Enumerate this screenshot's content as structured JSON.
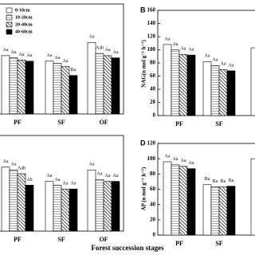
{
  "chart_data": [
    {
      "type": "bar",
      "ylim": [
        0,
        100
      ],
      "categories": [
        "PF",
        "SF",
        "OF"
      ],
      "legend": true,
      "series": [
        {
          "name": "0-10cm",
          "color": "#ffffff",
          "pattern": "none",
          "values": [
            53,
            48,
            65
          ],
          "labels": [
            "Aa",
            "Aa",
            "Aa"
          ]
        },
        {
          "name": "10-20cm",
          "color": "#ffffff",
          "pattern": "horizontal",
          "values": [
            51,
            46,
            55
          ],
          "labels": [
            "Aa",
            "Aa",
            "Aab"
          ]
        },
        {
          "name": "20-40cm",
          "color": "#ffffff",
          "pattern": "diagonal",
          "values": [
            49,
            43,
            53
          ],
          "labels": [
            "Aa",
            "Aa",
            "Aa"
          ]
        },
        {
          "name": "40-60cm",
          "color": "#000000",
          "pattern": "none",
          "values": [
            48,
            35,
            51
          ],
          "labels": [
            "Aa",
            "Ba",
            "Aa"
          ]
        }
      ]
    },
    {
      "type": "bar",
      "panel": "B",
      "y_label": "NAG(n mol g⁻¹ h⁻¹)",
      "ylim": [
        0,
        160
      ],
      "yticks": [
        0,
        20,
        40,
        60,
        80,
        100,
        120,
        140,
        160
      ],
      "categories": [
        "PF",
        "SF",
        null
      ],
      "series": [
        {
          "color": "#ffffff",
          "pattern": "none",
          "values": [
            108,
            82,
            103
          ],
          "labels": [
            "Aa",
            "Aa",
            null
          ]
        },
        {
          "color": "#ffffff",
          "pattern": "horizontal",
          "values": [
            100,
            76,
            null
          ],
          "labels": [
            "Aa",
            "Aa",
            null
          ]
        },
        {
          "color": "#ffffff",
          "pattern": "diagonal",
          "values": [
            93,
            70,
            null
          ],
          "labels": [
            "Aa",
            "Aa",
            null
          ]
        },
        {
          "color": "#000000",
          "pattern": "none",
          "values": [
            92,
            68,
            null
          ],
          "labels": [
            "Aa",
            "Aa",
            null
          ]
        }
      ]
    },
    {
      "type": "bar",
      "ylim": [
        0,
        100
      ],
      "categories": [
        "PF",
        "SF",
        "OF"
      ],
      "series": [
        {
          "color": "#ffffff",
          "pattern": "none",
          "values": [
            67,
            52,
            64
          ],
          "labels": [
            "Aa",
            "Aa",
            "Aa"
          ]
        },
        {
          "color": "#ffffff",
          "pattern": "horizontal",
          "values": [
            64,
            48,
            54
          ],
          "labels": [
            "Aa",
            "Aa",
            "Aa"
          ]
        },
        {
          "color": "#ffffff",
          "pattern": "diagonal",
          "values": [
            60,
            44,
            52
          ],
          "labels": [
            "Aab",
            "Aa",
            "Aa"
          ]
        },
        {
          "color": "#000000",
          "pattern": "none",
          "values": [
            48,
            44,
            52
          ],
          "labels": [
            "Ab",
            "Aa",
            "Aa"
          ]
        }
      ]
    },
    {
      "type": "bar",
      "panel": "D",
      "y_label": "AP (n mol g⁻¹ h⁻¹)",
      "ylim": [
        0,
        120
      ],
      "yticks": [
        0,
        20,
        40,
        60,
        80,
        100,
        120
      ],
      "categories": [
        "PF",
        "SF",
        null
      ],
      "series": [
        {
          "color": "#ffffff",
          "pattern": "none",
          "values": [
            96,
            66,
            100
          ],
          "labels": [
            "Aa",
            "Ba",
            null
          ]
        },
        {
          "color": "#ffffff",
          "pattern": "horizontal",
          "values": [
            92,
            63,
            null
          ],
          "labels": [
            "Aa",
            "Ba",
            null
          ]
        },
        {
          "color": "#ffffff",
          "pattern": "diagonal",
          "values": [
            90,
            63,
            null
          ],
          "labels": [
            "Aa",
            "Ba",
            null
          ]
        },
        {
          "color": "#000000",
          "pattern": "none",
          "values": [
            87,
            64,
            null
          ],
          "labels": [
            "Aa",
            "Ba",
            null
          ]
        }
      ]
    }
  ],
  "x_label": "Forest succession stages"
}
